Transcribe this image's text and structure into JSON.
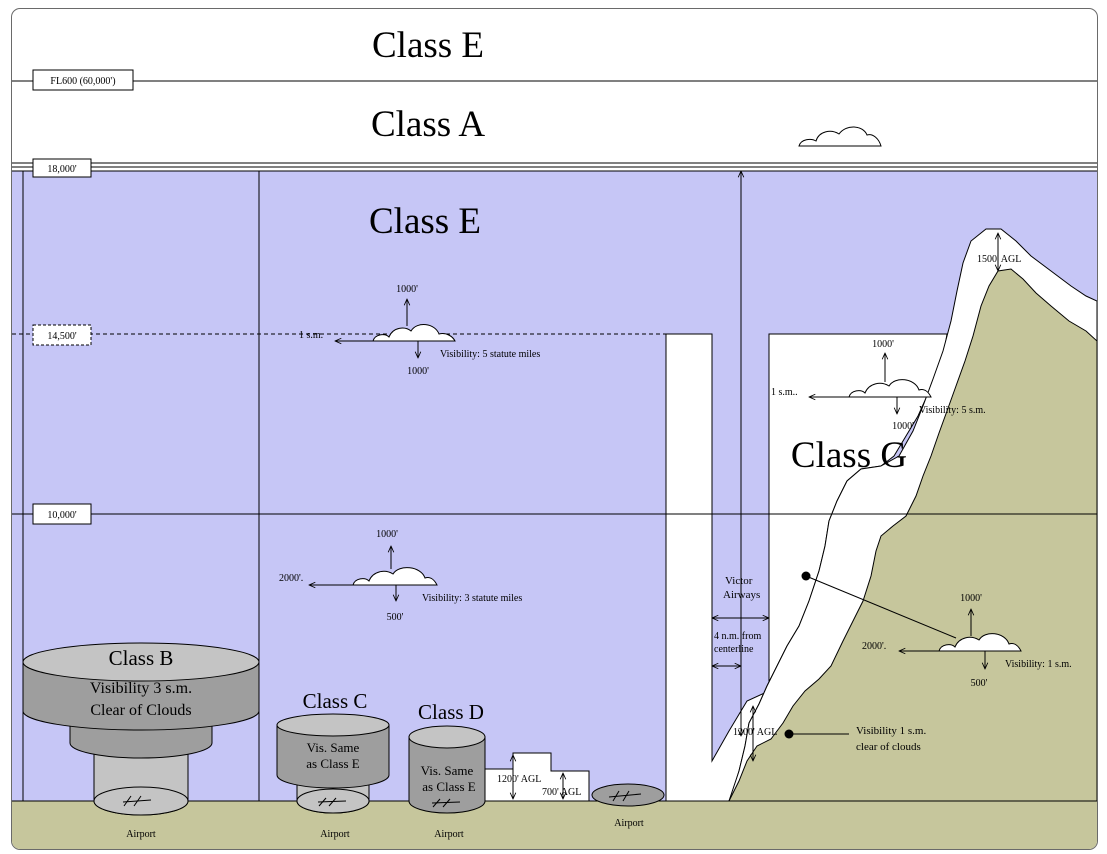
{
  "altitudes": {
    "fl600": "FL600 (60,000')",
    "a18000": "18,000'",
    "a14500": "14,500'",
    "a10000": "10,000'"
  },
  "classes": {
    "e_top": "Class E",
    "a": "Class A",
    "e_main": "Class E",
    "g": "Class G",
    "b": "Class B",
    "c": "Class C",
    "d": "Class D"
  },
  "class_b": {
    "line1": "Visibility 3 s.m.",
    "line2": "Clear of Clouds"
  },
  "class_c": {
    "line1": "Vis. Same",
    "line2": "as Class E"
  },
  "class_d": {
    "line1": "Vis. Same",
    "line2": "as Class E"
  },
  "upper_e_cloud": {
    "above": "1000'",
    "horizontal": "1 s.m.",
    "below": "1000'",
    "visibility": "Visibility: 5 statute miles"
  },
  "lower_e_cloud": {
    "above": "1000'",
    "horizontal": "2000'.",
    "below": "500'",
    "visibility": "Visibility: 3 statute miles"
  },
  "g_upper_cloud": {
    "above": "1000'",
    "horizontal": "1 s.m..",
    "below": "1000'",
    "visibility": "Visibility: 5 s.m."
  },
  "g_lower_cloud": {
    "above": "1000'",
    "horizontal": "2000'.",
    "below": "500'",
    "visibility": "Visibility: 1 s.m."
  },
  "labels": {
    "agl_1500": "1500' AGL",
    "agl_1200_g": "1200' AGL",
    "agl_1200_e": "1200' AGL",
    "agl_700": "700' AGL",
    "victor_1": "Victor",
    "victor_2": "Airways",
    "nm_1": "4 n.m. from",
    "nm_2": "centerline",
    "vis_g_1": "Visibility 1 s.m.",
    "vis_g_2": "clear of clouds"
  },
  "airports": {
    "b": "Airport",
    "c": "Airport",
    "d": "Airport",
    "e": "Airport"
  },
  "colors": {
    "class_e_fill": "#c6c6f6",
    "ground": "#c6c69c",
    "class_dark": "#9e9e9e",
    "class_light": "#c4c4c4"
  }
}
